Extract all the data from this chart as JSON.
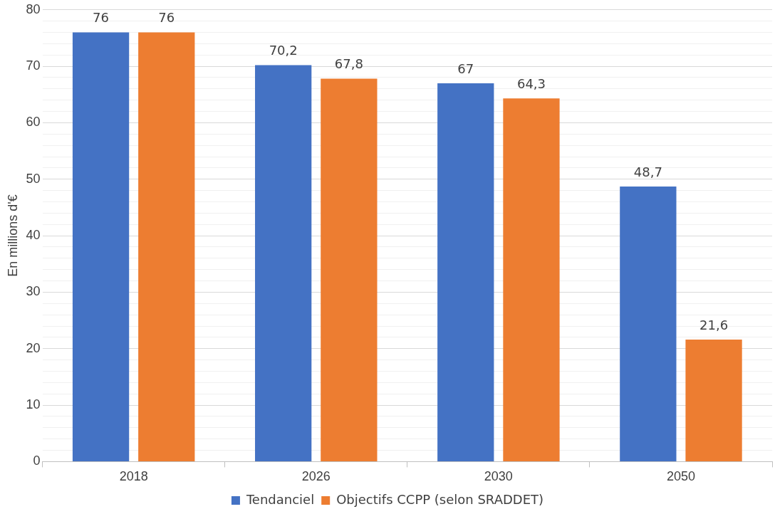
{
  "chart_data": {
    "type": "bar",
    "ylabel": "En millions d'€",
    "categories": [
      "2018",
      "2026",
      "2030",
      "2050"
    ],
    "series": [
      {
        "name": "Tendanciel",
        "color": "#4472c4",
        "values": [
          76,
          70.2,
          67,
          48.7
        ],
        "value_labels": [
          "76",
          "70,2",
          "67",
          "48,7"
        ]
      },
      {
        "name": "Objectifs CCPP (selon SRADDET)",
        "color": "#ed7d31",
        "values": [
          76,
          67.8,
          64.3,
          21.6
        ],
        "value_labels": [
          "76",
          "67,8",
          "64,3",
          "21,6"
        ]
      }
    ],
    "ylim": [
      0,
      80
    ],
    "yticks": [
      0,
      {
        "value": 2,
        "label": null
      },
      {
        "value": 4,
        "label": null
      },
      {
        "value": 6,
        "label": null
      },
      {
        "value": 8,
        "label": null
      },
      10,
      {
        "value": 12,
        "label": null
      },
      {
        "value": 14,
        "label": null
      },
      {
        "value": 16,
        "label": null
      },
      {
        "value": 18,
        "label": null
      },
      20,
      {
        "value": 22,
        "label": null
      },
      {
        "value": 24,
        "label": null
      },
      {
        "value": 26,
        "label": null
      },
      {
        "value": 28,
        "label": null
      },
      30,
      {
        "value": 32,
        "label": null
      },
      {
        "value": 34,
        "label": null
      },
      {
        "value": 36,
        "label": null
      },
      {
        "value": 38,
        "label": null
      },
      40,
      {
        "value": 42,
        "label": null
      },
      {
        "value": 44,
        "label": null
      },
      {
        "value": 46,
        "label": null
      },
      {
        "value": 48,
        "label": null
      },
      50,
      {
        "value": 52,
        "label": null
      },
      {
        "value": 54,
        "label": null
      },
      {
        "value": 56,
        "label": null
      },
      {
        "value": 58,
        "label": null
      },
      60,
      {
        "value": 62,
        "label": null
      },
      {
        "value": 64,
        "label": null
      },
      {
        "value": 66,
        "label": null
      },
      {
        "value": 68,
        "label": null
      },
      70,
      {
        "value": 72,
        "label": null
      },
      {
        "value": 74,
        "label": null
      },
      {
        "value": 76,
        "label": null
      },
      {
        "value": 78,
        "label": null
      },
      80
    ],
    "grid": true,
    "legend": "bottom"
  }
}
